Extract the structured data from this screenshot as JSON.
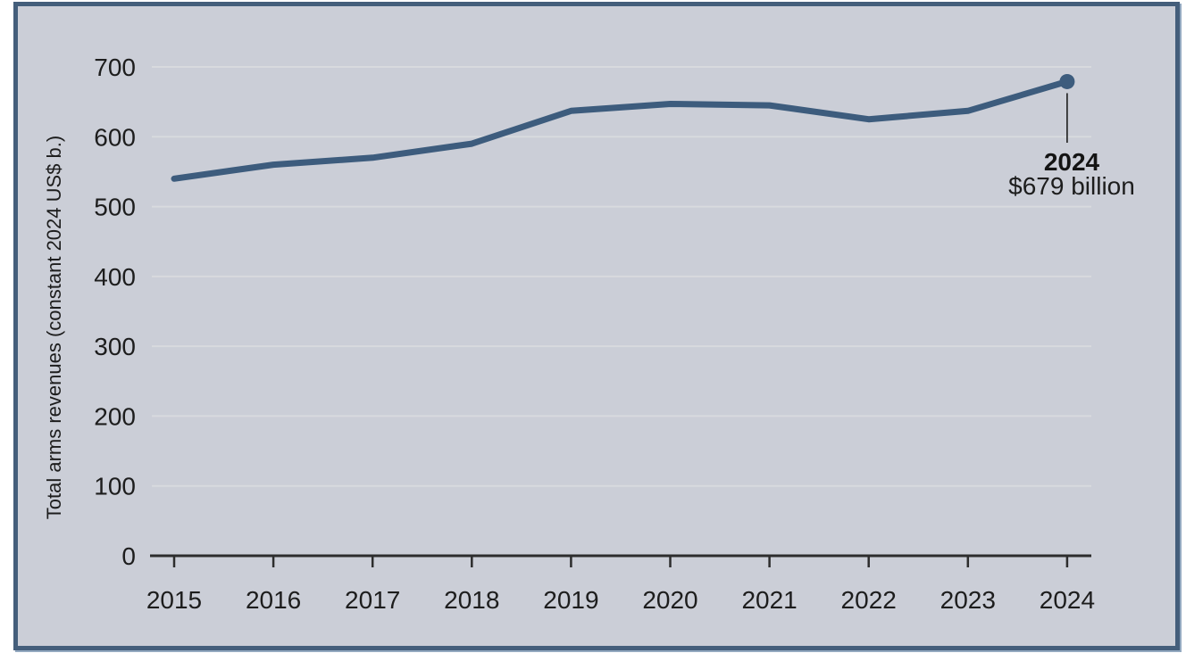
{
  "panel": {
    "background": "#cbced7",
    "border_color": "#445e7b",
    "outer_accent_color": "#93a9c0"
  },
  "chart_data": {
    "type": "line",
    "title": "",
    "xlabel": "",
    "ylabel": "Total arms revenues (constant 2024 US$ b.)",
    "x": [
      "2015",
      "2016",
      "2017",
      "2018",
      "2019",
      "2020",
      "2021",
      "2022",
      "2023",
      "2024"
    ],
    "series": [
      {
        "name": "total-arms-revenues",
        "values": [
          540,
          560,
          570,
          590,
          637,
          647,
          645,
          625,
          637,
          679
        ]
      }
    ],
    "ylim": [
      0,
      700
    ],
    "yticks": [
      0,
      100,
      200,
      300,
      400,
      500,
      600,
      700
    ],
    "grid": "horizontal",
    "legend_position": "none",
    "marker_on_last_point": true,
    "annotation": {
      "x": "2024",
      "label_top": "2024",
      "label_bottom": "$679 billion"
    },
    "colors": {
      "line": "#3d5c7d",
      "marker": "#3d5c7d",
      "gridline": "#d8dade",
      "axis": "#2d2d2d",
      "text": "#1d1d1d",
      "callout": "#1d1d1d"
    }
  }
}
